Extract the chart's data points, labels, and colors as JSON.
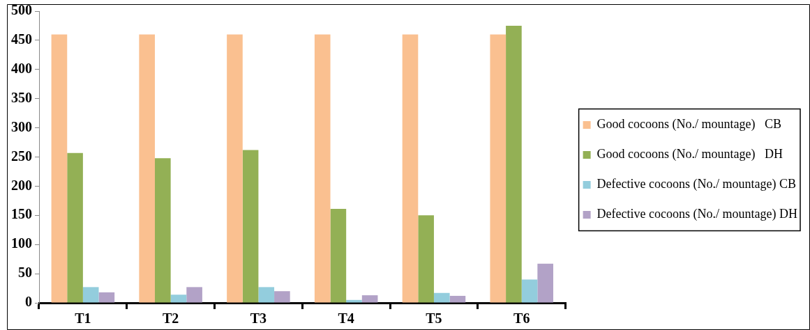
{
  "chart_data": {
    "type": "bar",
    "categories": [
      "T1",
      "T2",
      "T3",
      "T4",
      "T5",
      "T6"
    ],
    "series": [
      {
        "name": "Good cocoons (No./ mountage)   CB",
        "color": "#fac090",
        "values": [
          460,
          460,
          460,
          460,
          460,
          460
        ]
      },
      {
        "name": "Good cocoons (No./ mountage)   DH",
        "color": "#93b055",
        "values": [
          257,
          248,
          262,
          161,
          150,
          475
        ]
      },
      {
        "name": "Defective cocoons (No./ mountage) CB",
        "color": "#93cddd",
        "values": [
          27,
          14,
          27,
          5,
          17,
          40
        ]
      },
      {
        "name": "Defective cocoons (No./ mountage) DH",
        "color": "#b2a2c7",
        "values": [
          18,
          27,
          20,
          13,
          12,
          67
        ]
      }
    ],
    "ylim": [
      0,
      500
    ],
    "yticks": [
      0,
      50,
      100,
      150,
      200,
      250,
      300,
      350,
      400,
      450,
      500
    ],
    "grid": false,
    "legend": "right"
  }
}
